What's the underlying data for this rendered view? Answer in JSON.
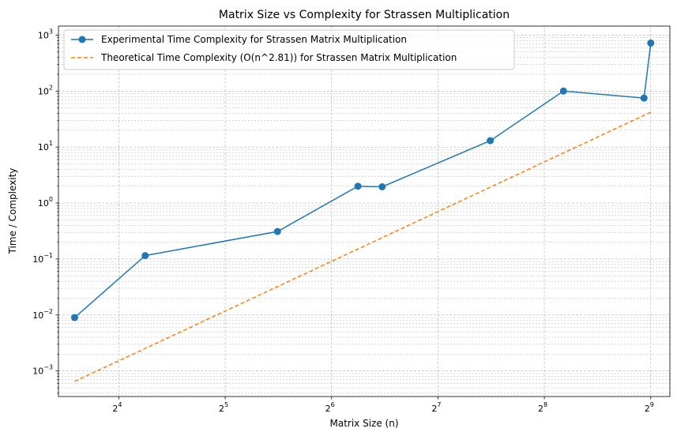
{
  "chart_data": {
    "type": "line",
    "title": "Matrix Size vs Complexity for Strassen Multiplication",
    "xlabel": "Matrix Size (n)",
    "ylabel": "Time / Complexity",
    "x_scale": "log2",
    "y_scale": "log10",
    "xlim": [
      10.8,
      580
    ],
    "ylim": [
      0.00035,
      1450
    ],
    "x_ticks": [
      {
        "value": 16,
        "base": "2",
        "exp": "4"
      },
      {
        "value": 32,
        "base": "2",
        "exp": "5"
      },
      {
        "value": 64,
        "base": "2",
        "exp": "6"
      },
      {
        "value": 128,
        "base": "2",
        "exp": "7"
      },
      {
        "value": 256,
        "base": "2",
        "exp": "8"
      },
      {
        "value": 512,
        "base": "2",
        "exp": "9"
      }
    ],
    "y_ticks": [
      {
        "value": 0.001,
        "base": "10",
        "exp": "−3"
      },
      {
        "value": 0.01,
        "base": "10",
        "exp": "−2"
      },
      {
        "value": 0.1,
        "base": "10",
        "exp": "−1"
      },
      {
        "value": 1,
        "base": "10",
        "exp": "0"
      },
      {
        "value": 10,
        "base": "10",
        "exp": "1"
      },
      {
        "value": 100,
        "base": "10",
        "exp": "2"
      },
      {
        "value": 1000,
        "base": "10",
        "exp": "3"
      }
    ],
    "grid": true,
    "legend_position": "top-left",
    "series": [
      {
        "name": "Experimental Time Complexity for Strassen Matrix Multiplication",
        "style": "solid",
        "marker": "circle",
        "color": "#1f77b4",
        "x": [
          12,
          19,
          45,
          76,
          89,
          180,
          290,
          490,
          512
        ],
        "y": [
          0.009,
          0.115,
          0.31,
          2.0,
          1.95,
          13,
          100,
          75,
          720
        ]
      },
      {
        "name": "Theoretical Time Complexity (O(n^2.81)) for Strassen Matrix Multiplication",
        "style": "dashed",
        "marker": "none",
        "color": "#ff7f0e",
        "x": [
          12,
          512
        ],
        "y": [
          0.00065,
          42
        ]
      }
    ]
  }
}
